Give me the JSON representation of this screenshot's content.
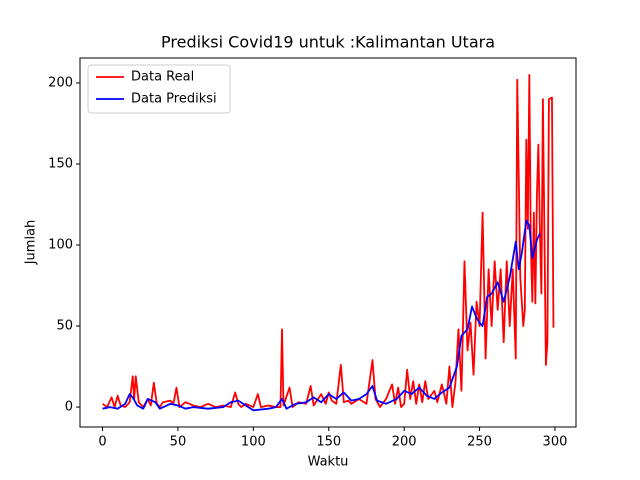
{
  "chart_data": {
    "type": "line",
    "title": "Prediksi Covid19 untuk :Kalimantan Utara",
    "xlabel": "Waktu",
    "ylabel": "Jumlah",
    "xlim": [
      -14.95,
      313.95
    ],
    "ylim": [
      -12.3,
      215.4
    ],
    "xticks": [
      0,
      50,
      100,
      150,
      200,
      250,
      300
    ],
    "yticks": [
      0,
      50,
      100,
      150,
      200
    ],
    "legend": "upper left",
    "series": [
      {
        "name": "Data Real",
        "color": "#ff0000",
        "x": [
          0,
          3,
          6,
          8,
          10,
          12,
          15,
          18,
          20,
          21,
          22,
          24,
          27,
          30,
          32,
          34,
          36,
          38,
          40,
          45,
          47,
          49,
          51,
          55,
          60,
          65,
          70,
          75,
          80,
          85,
          88,
          90,
          92,
          95,
          100,
          103,
          105,
          110,
          115,
          118,
          119,
          120,
          124,
          126,
          130,
          135,
          138,
          140,
          145,
          148,
          150,
          152,
          155,
          158,
          160,
          163,
          165,
          170,
          175,
          179,
          181,
          184,
          188,
          192,
          194,
          196,
          198,
          200,
          202,
          204,
          206,
          208,
          210,
          212,
          214,
          216,
          220,
          222,
          225,
          228,
          230,
          232,
          234,
          236,
          238,
          240,
          242,
          244,
          246,
          248,
          250,
          252,
          254,
          256,
          258,
          260,
          262,
          264,
          266,
          268,
          270,
          272,
          274,
          275,
          277,
          279,
          280,
          281,
          282,
          283,
          284,
          285,
          286,
          287,
          288,
          289,
          290,
          291,
          292,
          294,
          295,
          296,
          298,
          299
        ],
        "values": [
          2,
          0,
          6,
          0,
          7,
          1,
          0,
          3,
          19,
          5,
          19,
          3,
          0,
          5,
          1,
          15,
          2,
          0,
          3,
          4,
          2,
          12,
          0,
          3,
          1,
          0,
          2,
          0,
          1,
          0,
          9,
          2,
          0,
          2,
          0,
          8,
          0,
          1,
          0,
          0,
          48,
          1,
          12,
          0,
          3,
          2,
          13,
          1,
          8,
          2,
          9,
          4,
          2,
          26,
          3,
          4,
          2,
          5,
          2,
          29,
          5,
          0,
          5,
          14,
          2,
          12,
          0,
          2,
          23,
          5,
          16,
          2,
          14,
          3,
          16,
          5,
          10,
          3,
          14,
          2,
          25,
          0,
          15,
          48,
          10,
          90,
          35,
          52,
          20,
          65,
          50,
          120,
          30,
          85,
          50,
          90,
          60,
          85,
          40,
          90,
          50,
          85,
          30,
          202,
          80,
          50,
          60,
          165,
          110,
          205,
          100,
          65,
          120,
          64,
          130,
          162,
          110,
          70,
          190,
          26,
          40,
          190,
          191,
          49
        ]
      },
      {
        "name": "Data Prediksi",
        "color": "#0000ff",
        "x": [
          0,
          5,
          10,
          15,
          18,
          20,
          23,
          27,
          30,
          35,
          38,
          45,
          50,
          55,
          60,
          70,
          80,
          85,
          90,
          95,
          100,
          110,
          115,
          119,
          122,
          128,
          135,
          140,
          145,
          150,
          155,
          160,
          165,
          170,
          175,
          179,
          182,
          188,
          195,
          200,
          205,
          210,
          215,
          220,
          225,
          230,
          235,
          238,
          242,
          245,
          248,
          250,
          252,
          255,
          258,
          262,
          266,
          270,
          274,
          276,
          278,
          281,
          283,
          285,
          288,
          290
        ],
        "values": [
          -1,
          0,
          -1,
          2,
          8,
          6,
          1,
          -1,
          5,
          3,
          -1,
          2,
          1,
          -1,
          0,
          -1,
          0,
          3,
          4,
          1,
          -2,
          -1,
          0,
          5,
          -1,
          2,
          3,
          6,
          3,
          8,
          5,
          9,
          4,
          5,
          8,
          13,
          4,
          2,
          5,
          10,
          8,
          12,
          7,
          5,
          9,
          12,
          25,
          44,
          48,
          62,
          55,
          52,
          50,
          68,
          70,
          77,
          65,
          80,
          102,
          85,
          95,
          115,
          112,
          92,
          103,
          107
        ]
      }
    ]
  }
}
